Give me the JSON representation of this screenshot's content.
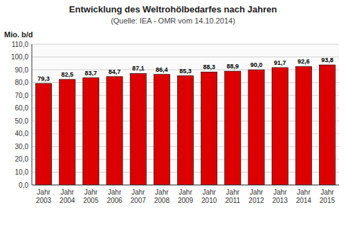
{
  "chart_data": {
    "type": "bar",
    "title": "Entwicklung des Weltrohölbedarfes nach Jahren",
    "subtitle": "(Quelle: IEA - OMR vom 14.10.2014)",
    "y_label": "Mio. b/d",
    "categories": [
      "Jahr\n2003",
      "Jahr\n2004",
      "Jahr\n2005",
      "Jahr\n2006",
      "Jahr\n2007",
      "Jahr\n2008",
      "Jahr\n2009",
      "Jahr\n2010",
      "Jahr\n2011",
      "Jahr\n2012",
      "Jahr\n2013",
      "Jahr\n2014",
      "Jahr\n2015"
    ],
    "values": [
      79.3,
      82.5,
      83.7,
      84.7,
      87.1,
      86.4,
      85.3,
      88.3,
      88.9,
      90.0,
      91.7,
      92.6,
      93.8
    ],
    "value_labels": [
      "79,3",
      "82,5",
      "83,7",
      "84,7",
      "87,1",
      "86,4",
      "85,3",
      "88,3",
      "88,9",
      "90,0",
      "91,7",
      "92,6",
      "93,8"
    ],
    "data_labels": true,
    "color": "#DD0000",
    "ylim": [
      0,
      110
    ],
    "yticks": [
      {
        "value": 0,
        "label": "0,0"
      },
      {
        "value": 10,
        "label": "10,0"
      },
      {
        "value": 20,
        "label": "20,0"
      },
      {
        "value": 30,
        "label": "30,0"
      },
      {
        "value": 40,
        "label": "40,0"
      },
      {
        "value": 50,
        "label": "50,0"
      },
      {
        "value": 60,
        "label": "60,0"
      },
      {
        "value": 70,
        "label": "70,0"
      },
      {
        "value": 80,
        "label": "80,0"
      },
      {
        "value": 90,
        "label": "90,0"
      },
      {
        "value": 100,
        "label": "100,0"
      },
      {
        "value": 110,
        "label": "110,0"
      }
    ],
    "grid": true
  }
}
